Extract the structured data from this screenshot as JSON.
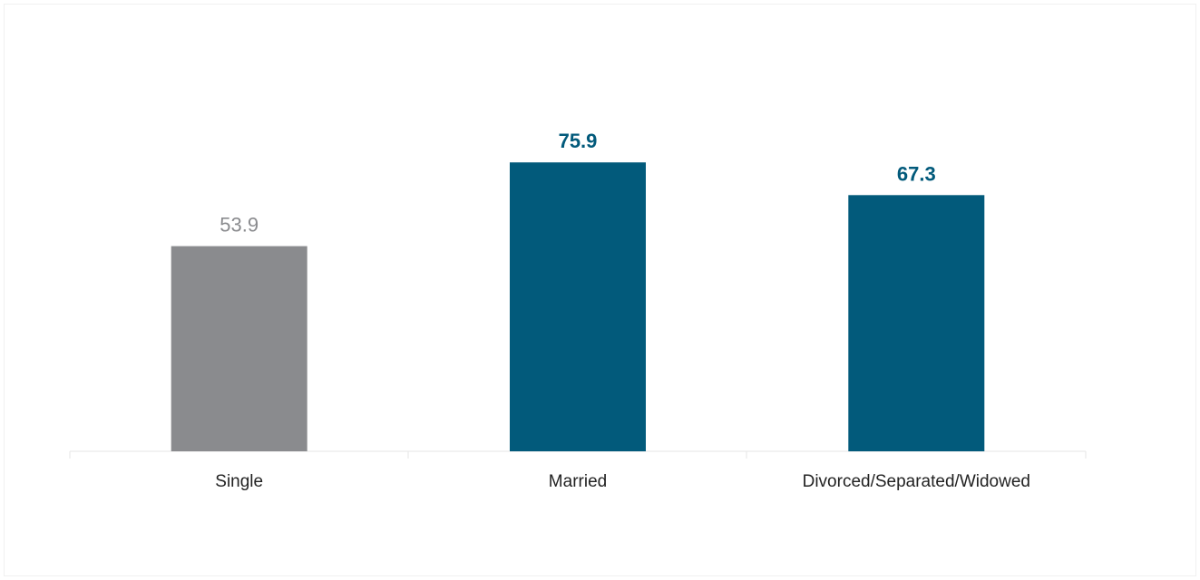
{
  "chart_data": {
    "type": "bar",
    "categories": [
      "Single",
      "Married",
      "Divorced/Separated/Widowed"
    ],
    "values": [
      53.9,
      75.9,
      67.3
    ],
    "value_labels": [
      "53.9",
      "75.9",
      "67.3"
    ],
    "colors": [
      "#8a8b8e",
      "#025a7b",
      "#025a7b"
    ],
    "label_colors": [
      "#8a8b8e",
      "#025a7b",
      "#025a7b"
    ],
    "label_bold": [
      false,
      true,
      true
    ],
    "ylim": [
      0,
      100
    ],
    "grid": false,
    "legend": "none"
  }
}
